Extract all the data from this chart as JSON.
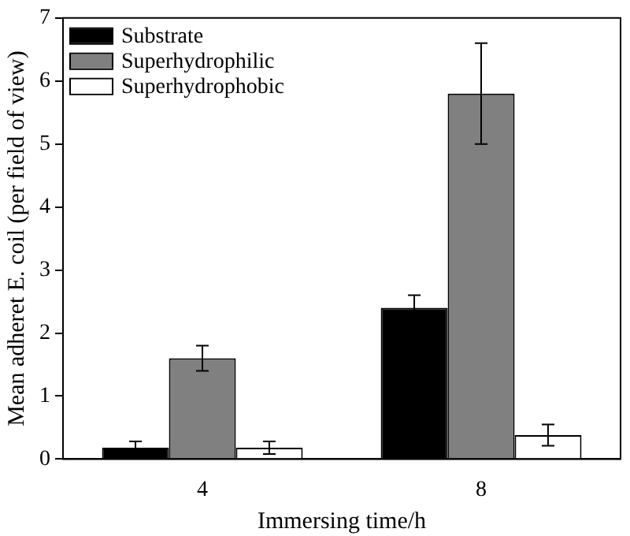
{
  "chart_data": {
    "type": "bar",
    "xlabel": "Immersing time/h",
    "ylabel": "Mean adheret E. coil (per field of view)",
    "categories": [
      "4",
      "8"
    ],
    "series": [
      {
        "name": "Substrate",
        "color": "#000000",
        "values": [
          0.18,
          2.4
        ],
        "errors": [
          0.1,
          0.2
        ]
      },
      {
        "name": "Superhydrophilic",
        "color": "#808080",
        "values": [
          1.6,
          5.8
        ],
        "errors": [
          0.2,
          0.8
        ]
      },
      {
        "name": "Superhydrophobic",
        "color": "#ffffff",
        "values": [
          0.18,
          0.38
        ],
        "errors": [
          0.1,
          0.17
        ]
      }
    ],
    "ylim": [
      0,
      7
    ],
    "yticks": [
      0,
      1,
      2,
      3,
      4,
      5,
      6,
      7
    ],
    "grid": false,
    "legend": "top left"
  }
}
